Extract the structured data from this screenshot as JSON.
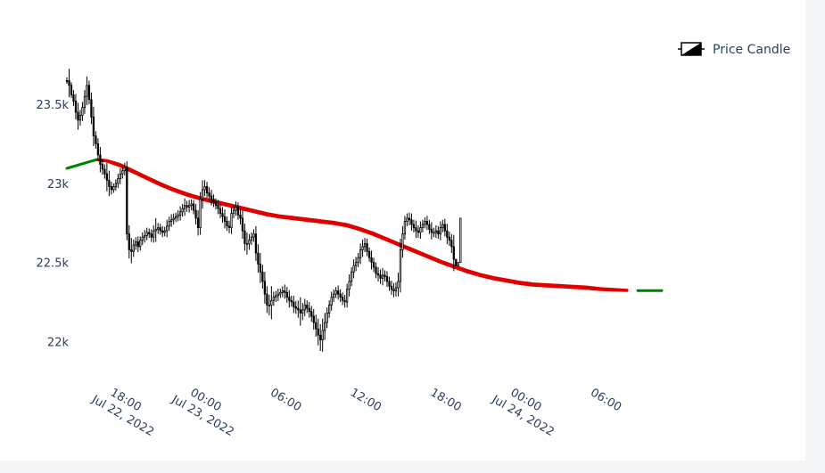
{
  "chart_data": {
    "type": "candlestick",
    "legend": {
      "entries": [
        {
          "name": "Price Candle"
        }
      ],
      "placement": "top-right"
    },
    "x_ticks": [
      {
        "t": 18,
        "line1": "18:00",
        "line2": "Jul 22, 2022"
      },
      {
        "t": 24,
        "line1": "00:00",
        "line2": "Jul 23, 2022"
      },
      {
        "t": 30,
        "line1": "06:00",
        "line2": ""
      },
      {
        "t": 36,
        "line1": "12:00",
        "line2": ""
      },
      {
        "t": 42,
        "line1": "18:00",
        "line2": ""
      },
      {
        "t": 48,
        "line1": "00:00",
        "line2": "Jul 24, 2022"
      },
      {
        "t": 54,
        "line1": "06:00",
        "line2": ""
      }
    ],
    "x_unit": "hours since Jul 22, 2022 00:00",
    "xlim": [
      13.8,
      59.0
    ],
    "y_ticks": [
      {
        "v": 22000,
        "label": "22k"
      },
      {
        "v": 22500,
        "label": "22.5k"
      },
      {
        "v": 23000,
        "label": "23k"
      },
      {
        "v": 23500,
        "label": "23.5k"
      }
    ],
    "ylim": [
      21850,
      23850
    ],
    "grid": false,
    "candles": {
      "start_t": 14.0,
      "step_hours": 0.1667,
      "color": "#000000",
      "close": [
        23650,
        23620,
        23560,
        23520,
        23450,
        23400,
        23430,
        23480,
        23550,
        23620,
        23530,
        23420,
        23300,
        23250,
        23180,
        23120,
        23090,
        23060,
        23020,
        22980,
        22960,
        22980,
        23000,
        23030,
        23060,
        23080,
        23100,
        22680,
        22580,
        22570,
        22610,
        22630,
        22600,
        22640,
        22660,
        22670,
        22690,
        22680,
        22660,
        22700,
        22710,
        22720,
        22700,
        22690,
        22700,
        22730,
        22760,
        22770,
        22780,
        22790,
        22800,
        22820,
        22840,
        22860,
        22850,
        22860,
        22870,
        22830,
        22780,
        22720,
        22900,
        22960,
        22980,
        22940,
        22920,
        22900,
        22880,
        22860,
        22840,
        22810,
        22790,
        22760,
        22730,
        22720,
        22810,
        22830,
        22850,
        22800,
        22780,
        22700,
        22620,
        22620,
        22640,
        22660,
        22680,
        22560,
        22490,
        22440,
        22380,
        22300,
        22230,
        22230,
        22260,
        22280,
        22290,
        22300,
        22310,
        22320,
        22310,
        22280,
        22260,
        22250,
        22220,
        22210,
        22200,
        22180,
        22200,
        22230,
        22210,
        22190,
        22160,
        22120,
        22080,
        22040,
        22010,
        22070,
        22120,
        22180,
        22230,
        22280,
        22300,
        22320,
        22300,
        22280,
        22260,
        22250,
        22330,
        22380,
        22440,
        22480,
        22500,
        22530,
        22580,
        22600,
        22620,
        22570,
        22530,
        22500,
        22470,
        22430,
        22420,
        22400,
        22420,
        22410,
        22380,
        22350,
        22330,
        22320,
        22340,
        22380,
        22580,
        22680,
        22760,
        22780,
        22770,
        22740,
        22720,
        22700,
        22690,
        22720,
        22740,
        22760,
        22740,
        22710,
        22690,
        22690,
        22700,
        22680,
        22720,
        22740,
        22700,
        22660,
        22640,
        22600,
        22520,
        22480,
        22500,
        22780
      ],
      "open": [
        23650,
        23650,
        23620,
        23560,
        23520,
        23450,
        23400,
        23430,
        23480,
        23550,
        23620,
        23530,
        23420,
        23300,
        23250,
        23180,
        23120,
        23090,
        23060,
        23020,
        22980,
        22960,
        22980,
        23000,
        23030,
        23060,
        23080,
        23100,
        22680,
        22580,
        22570,
        22610,
        22630,
        22600,
        22640,
        22660,
        22670,
        22690,
        22680,
        22660,
        22700,
        22710,
        22720,
        22700,
        22690,
        22700,
        22730,
        22760,
        22770,
        22780,
        22790,
        22800,
        22820,
        22840,
        22860,
        22850,
        22860,
        22870,
        22830,
        22780,
        22720,
        22900,
        22960,
        22980,
        22940,
        22920,
        22900,
        22880,
        22860,
        22840,
        22810,
        22790,
        22760,
        22730,
        22720,
        22810,
        22830,
        22850,
        22800,
        22780,
        22700,
        22620,
        22620,
        22640,
        22660,
        22680,
        22560,
        22490,
        22440,
        22380,
        22300,
        22230,
        22230,
        22260,
        22280,
        22290,
        22300,
        22310,
        22320,
        22310,
        22280,
        22260,
        22250,
        22220,
        22210,
        22200,
        22180,
        22200,
        22230,
        22210,
        22190,
        22160,
        22120,
        22080,
        22040,
        22010,
        22070,
        22120,
        22180,
        22230,
        22280,
        22300,
        22320,
        22300,
        22280,
        22260,
        22250,
        22330,
        22380,
        22440,
        22480,
        22500,
        22530,
        22580,
        22600,
        22620,
        22570,
        22530,
        22500,
        22470,
        22430,
        22420,
        22400,
        22420,
        22410,
        22380,
        22350,
        22330,
        22320,
        22340,
        22380,
        22580,
        22680,
        22760,
        22780,
        22770,
        22740,
        22720,
        22700,
        22690,
        22720,
        22740,
        22760,
        22740,
        22710,
        22690,
        22690,
        22700,
        22680,
        22720,
        22740,
        22700,
        22660,
        22640,
        22600,
        22520,
        22480,
        22500
      ],
      "range": [
        40,
        150,
        40,
        60,
        90,
        120,
        70,
        70,
        80,
        110,
        60,
        90,
        130,
        60,
        70,
        100,
        70,
        60,
        140,
        120,
        60,
        40,
        50,
        60,
        70,
        60,
        60,
        80,
        110,
        150,
        70,
        60,
        70,
        50,
        60,
        70,
        60,
        50,
        60,
        70,
        140,
        60,
        50,
        60,
        50,
        80,
        60,
        70,
        60,
        50,
        60,
        70,
        60,
        90,
        60,
        70,
        60,
        50,
        80,
        100,
        90,
        120,
        80,
        60,
        70,
        80,
        60,
        50,
        70,
        60,
        80,
        90,
        60,
        70,
        80,
        60,
        70,
        60,
        80,
        100,
        90,
        140,
        80,
        60,
        60,
        100,
        110,
        140,
        90,
        120,
        100,
        130,
        180,
        70,
        60,
        70,
        50,
        60,
        80,
        70,
        90,
        60,
        80,
        70,
        100,
        160,
        90,
        80,
        60,
        80,
        70,
        90,
        100,
        130,
        140,
        150,
        120,
        70,
        60,
        70,
        60,
        50,
        70,
        60,
        60,
        70,
        70,
        90,
        60,
        80,
        70,
        60,
        80,
        90,
        70,
        60,
        50,
        90,
        60,
        60,
        80,
        70,
        90,
        60,
        70,
        60,
        70,
        80,
        70,
        110,
        140,
        100,
        70,
        60,
        70,
        80,
        60,
        90,
        70,
        80,
        60,
        50,
        70,
        60,
        90,
        60,
        70,
        60,
        80,
        60,
        70,
        90,
        70,
        80,
        150
      ]
    },
    "moving_averages": [
      {
        "color": "#e10000",
        "points": [
          [
            16.2,
            23150
          ],
          [
            17.0,
            23145
          ],
          [
            18.0,
            23120
          ],
          [
            19.0,
            23080
          ],
          [
            20.0,
            23040
          ],
          [
            21.0,
            23000
          ],
          [
            22.0,
            22965
          ],
          [
            23.0,
            22935
          ],
          [
            24.0,
            22910
          ],
          [
            25.0,
            22890
          ],
          [
            26.0,
            22870
          ],
          [
            27.0,
            22850
          ],
          [
            28.0,
            22830
          ],
          [
            29.0,
            22810
          ],
          [
            30.0,
            22795
          ],
          [
            31.0,
            22785
          ],
          [
            32.0,
            22775
          ],
          [
            33.0,
            22765
          ],
          [
            34.0,
            22755
          ],
          [
            35.0,
            22740
          ],
          [
            36.0,
            22715
          ],
          [
            37.0,
            22685
          ],
          [
            38.0,
            22650
          ],
          [
            39.0,
            22615
          ],
          [
            40.0,
            22580
          ],
          [
            41.0,
            22545
          ],
          [
            42.0,
            22510
          ],
          [
            43.0,
            22480
          ],
          [
            44.0,
            22450
          ],
          [
            45.0,
            22425
          ],
          [
            46.0,
            22405
          ],
          [
            47.0,
            22390
          ],
          [
            48.0,
            22375
          ],
          [
            49.0,
            22365
          ],
          [
            50.0,
            22360
          ],
          [
            51.0,
            22355
          ],
          [
            52.0,
            22350
          ],
          [
            53.0,
            22345
          ],
          [
            54.0,
            22335
          ],
          [
            55.0,
            22330
          ],
          [
            56.0,
            22325
          ]
        ]
      },
      {
        "color": "#e10000",
        "points": [
          [
            16.2,
            23150
          ],
          [
            17.0,
            23140
          ],
          [
            18.0,
            23110
          ],
          [
            19.0,
            23070
          ],
          [
            20.0,
            23030
          ],
          [
            21.0,
            22990
          ],
          [
            22.0,
            22955
          ],
          [
            23.0,
            22925
          ],
          [
            24.0,
            22900
          ],
          [
            25.0,
            22880
          ],
          [
            26.0,
            22860
          ],
          [
            27.0,
            22840
          ],
          [
            28.0,
            22820
          ],
          [
            29.0,
            22800
          ],
          [
            30.0,
            22785
          ],
          [
            31.0,
            22775
          ],
          [
            32.0,
            22765
          ],
          [
            33.0,
            22755
          ],
          [
            34.0,
            22745
          ],
          [
            35.0,
            22730
          ],
          [
            36.0,
            22705
          ],
          [
            37.0,
            22675
          ],
          [
            38.0,
            22640
          ],
          [
            39.0,
            22605
          ],
          [
            40.0,
            22570
          ],
          [
            41.0,
            22535
          ],
          [
            42.0,
            22500
          ],
          [
            43.0,
            22470
          ],
          [
            44.0,
            22440
          ],
          [
            45.0,
            22415
          ],
          [
            46.0,
            22395
          ],
          [
            47.0,
            22380
          ],
          [
            48.0,
            22365
          ],
          [
            49.0,
            22355
          ],
          [
            50.0,
            22350
          ],
          [
            51.0,
            22345
          ],
          [
            52.0,
            22340
          ],
          [
            53.0,
            22335
          ],
          [
            54.0,
            22328
          ],
          [
            55.0,
            22325
          ],
          [
            56.0,
            22322
          ]
        ]
      },
      {
        "color": "#008000",
        "points": [
          [
            14.0,
            23095
          ],
          [
            16.2,
            23150
          ]
        ]
      },
      {
        "color": "#008000",
        "points": [
          [
            56.8,
            22322
          ],
          [
            58.6,
            22322
          ]
        ]
      }
    ]
  }
}
